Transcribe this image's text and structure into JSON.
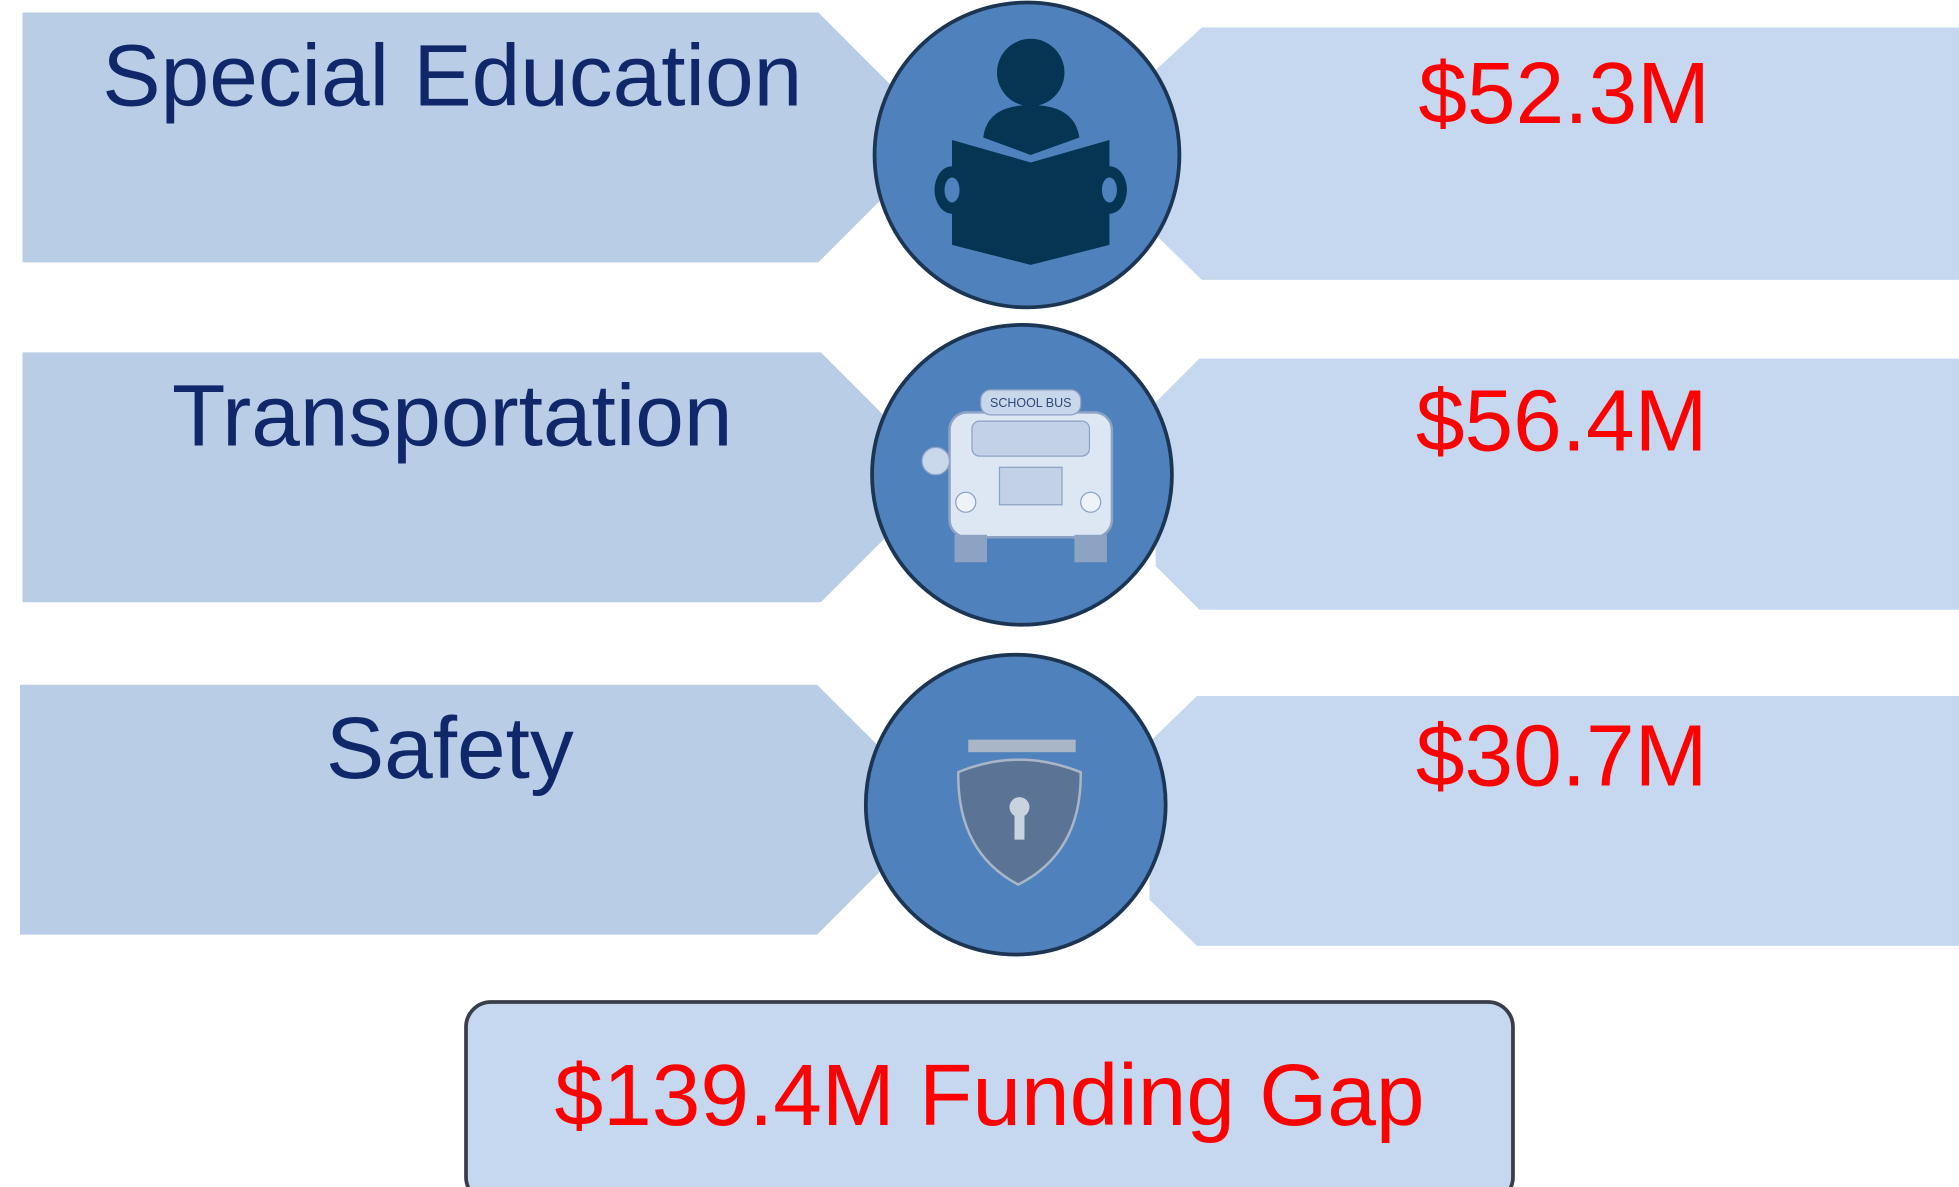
{
  "rows": [
    {
      "label": "Special Education",
      "amount": "$52.3M"
    },
    {
      "label": "Transportation",
      "amount": "$56.4M"
    },
    {
      "label": "Safety",
      "amount": "$30.7M"
    }
  ],
  "total": "$139.4M Funding Gap"
}
